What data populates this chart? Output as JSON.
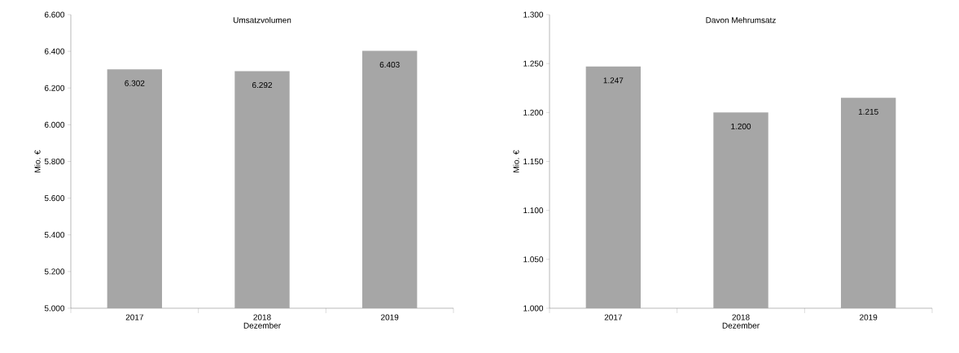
{
  "chart_data": [
    {
      "type": "bar",
      "title": "Umsatzvolumen",
      "xlabel": "Dezember",
      "ylabel": "Mio. €",
      "categories": [
        "2017",
        "2018",
        "2019"
      ],
      "values": [
        6302,
        6292,
        6403
      ],
      "value_labels": [
        "6.302",
        "6.292",
        "6.403"
      ],
      "color": "#a6a6a6",
      "ylim": [
        5000,
        6600
      ],
      "yticks": [
        {
          "value": 5000,
          "label": "5.000"
        },
        {
          "value": 5200,
          "label": "5.200"
        },
        {
          "value": 5400,
          "label": "5.400"
        },
        {
          "value": 5600,
          "label": "5.600"
        },
        {
          "value": 5800,
          "label": "5.800"
        },
        {
          "value": 6000,
          "label": "6.000"
        },
        {
          "value": 6200,
          "label": "6.200"
        },
        {
          "value": 6400,
          "label": "6.400"
        },
        {
          "value": 6600,
          "label": "6.600"
        }
      ]
    },
    {
      "type": "bar",
      "title": "Davon Mehrumsatz",
      "xlabel": "Dezember",
      "ylabel": "Mio. €",
      "categories": [
        "2017",
        "2018",
        "2019"
      ],
      "values": [
        1247,
        1200,
        1215
      ],
      "value_labels": [
        "1.247",
        "1.200",
        "1.215"
      ],
      "color": "#a6a6a6",
      "ylim": [
        1000,
        1300
      ],
      "yticks": [
        {
          "value": 1000,
          "label": "1.000"
        },
        {
          "value": 1050,
          "label": "1.050"
        },
        {
          "value": 1100,
          "label": "1.100"
        },
        {
          "value": 1150,
          "label": "1.150"
        },
        {
          "value": 1200,
          "label": "1.200"
        },
        {
          "value": 1250,
          "label": "1.250"
        },
        {
          "value": 1300,
          "label": "1.300"
        }
      ]
    }
  ]
}
